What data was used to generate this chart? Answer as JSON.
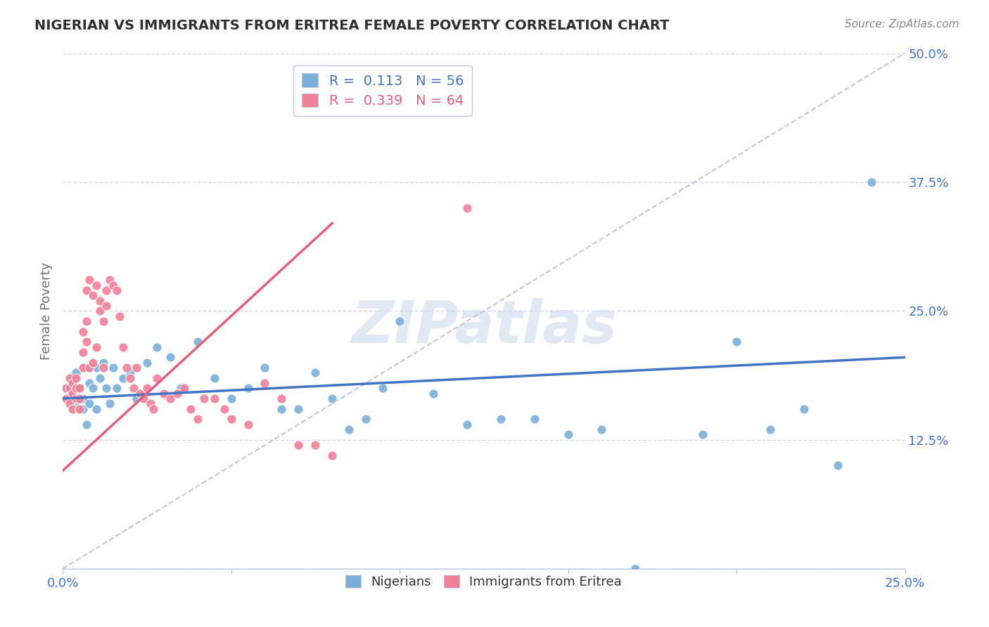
{
  "title": "NIGERIAN VS IMMIGRANTS FROM ERITREA FEMALE POVERTY CORRELATION CHART",
  "source": "Source: ZipAtlas.com",
  "ylabel": "Female Poverty",
  "xlim": [
    0.0,
    0.25
  ],
  "ylim": [
    0.0,
    0.5
  ],
  "xticks": [
    0.0,
    0.05,
    0.1,
    0.15,
    0.2,
    0.25
  ],
  "yticks": [
    0.0,
    0.125,
    0.25,
    0.375,
    0.5
  ],
  "xticklabels": [
    "0.0%",
    "",
    "",
    "",
    "",
    "25.0%"
  ],
  "yticklabels": [
    "",
    "12.5%",
    "25.0%",
    "37.5%",
    "50.0%"
  ],
  "legend_R_label1": "R =  0.113   N = 56",
  "legend_R_label2": "R =  0.339   N = 64",
  "series1_color": "#7ab0d8",
  "series2_color": "#f08098",
  "trendline1_color": "#4472c4",
  "trendline2_color": "#e06080",
  "refline_color": "#c8b8d0",
  "watermark": "ZIPatlas",
  "watermark_color": "#c8d8ec",
  "background_color": "#ffffff",
  "title_color": "#303030",
  "tick_color": "#4472c4",
  "grid_color": "#d0d8e8",
  "nigerians_x": [
    0.001,
    0.002,
    0.003,
    0.003,
    0.004,
    0.004,
    0.005,
    0.005,
    0.006,
    0.006,
    0.007,
    0.007,
    0.008,
    0.008,
    0.009,
    0.01,
    0.01,
    0.011,
    0.012,
    0.013,
    0.014,
    0.015,
    0.016,
    0.018,
    0.02,
    0.022,
    0.025,
    0.028,
    0.032,
    0.035,
    0.04,
    0.045,
    0.05,
    0.055,
    0.06,
    0.065,
    0.07,
    0.075,
    0.08,
    0.085,
    0.09,
    0.095,
    0.1,
    0.11,
    0.12,
    0.13,
    0.14,
    0.15,
    0.16,
    0.17,
    0.19,
    0.2,
    0.21,
    0.22,
    0.23,
    0.24
  ],
  "nigerians_y": [
    0.175,
    0.165,
    0.185,
    0.17,
    0.16,
    0.19,
    0.155,
    0.175,
    0.165,
    0.155,
    0.14,
    0.195,
    0.16,
    0.18,
    0.175,
    0.155,
    0.195,
    0.185,
    0.2,
    0.175,
    0.16,
    0.195,
    0.175,
    0.185,
    0.19,
    0.165,
    0.2,
    0.215,
    0.205,
    0.175,
    0.22,
    0.185,
    0.165,
    0.175,
    0.195,
    0.155,
    0.155,
    0.19,
    0.165,
    0.135,
    0.145,
    0.175,
    0.24,
    0.17,
    0.14,
    0.145,
    0.145,
    0.13,
    0.135,
    0.0,
    0.13,
    0.22,
    0.135,
    0.155,
    0.1,
    0.375
  ],
  "eritrea_x": [
    0.001,
    0.001,
    0.002,
    0.002,
    0.002,
    0.003,
    0.003,
    0.003,
    0.004,
    0.004,
    0.004,
    0.005,
    0.005,
    0.005,
    0.006,
    0.006,
    0.006,
    0.007,
    0.007,
    0.007,
    0.008,
    0.008,
    0.009,
    0.009,
    0.01,
    0.01,
    0.011,
    0.011,
    0.012,
    0.012,
    0.013,
    0.013,
    0.014,
    0.015,
    0.016,
    0.017,
    0.018,
    0.019,
    0.02,
    0.021,
    0.022,
    0.023,
    0.024,
    0.025,
    0.026,
    0.027,
    0.028,
    0.03,
    0.032,
    0.034,
    0.036,
    0.038,
    0.04,
    0.042,
    0.045,
    0.048,
    0.05,
    0.055,
    0.06,
    0.065,
    0.07,
    0.075,
    0.08,
    0.12
  ],
  "eritrea_y": [
    0.175,
    0.165,
    0.16,
    0.175,
    0.185,
    0.17,
    0.155,
    0.18,
    0.165,
    0.175,
    0.185,
    0.155,
    0.175,
    0.165,
    0.23,
    0.21,
    0.195,
    0.24,
    0.27,
    0.22,
    0.28,
    0.195,
    0.265,
    0.2,
    0.275,
    0.215,
    0.26,
    0.25,
    0.195,
    0.24,
    0.27,
    0.255,
    0.28,
    0.275,
    0.27,
    0.245,
    0.215,
    0.195,
    0.185,
    0.175,
    0.195,
    0.17,
    0.165,
    0.175,
    0.16,
    0.155,
    0.185,
    0.17,
    0.165,
    0.17,
    0.175,
    0.155,
    0.145,
    0.165,
    0.165,
    0.155,
    0.145,
    0.14,
    0.18,
    0.165,
    0.12,
    0.12,
    0.11,
    0.35
  ],
  "trendline1_x0": 0.0,
  "trendline1_x1": 0.25,
  "trendline1_y0": 0.165,
  "trendline1_y1": 0.205,
  "trendline2_x0": 0.0,
  "trendline2_x1": 0.08,
  "trendline2_y0": 0.095,
  "trendline2_y1": 0.335
}
